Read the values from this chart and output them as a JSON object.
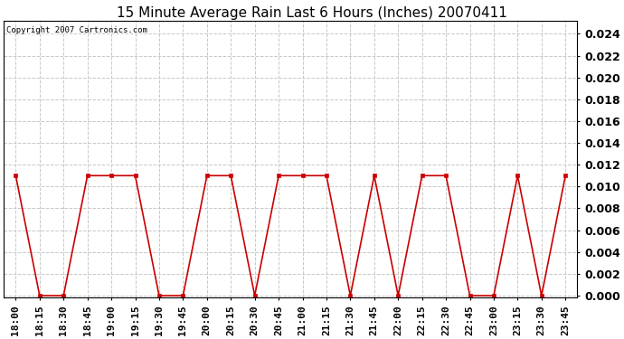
{
  "title": "15 Minute Average Rain Last 6 Hours (Inches) 20070411",
  "copyright_text": "Copyright 2007 Cartronics.com",
  "line_color": "#cc0000",
  "marker_color": "#cc0000",
  "background_color": "#ffffff",
  "grid_color": "#c8c8c8",
  "x_labels": [
    "18:00",
    "18:15",
    "18:30",
    "18:45",
    "19:00",
    "19:15",
    "19:30",
    "19:45",
    "20:00",
    "20:15",
    "20:30",
    "20:45",
    "21:00",
    "21:15",
    "21:30",
    "21:45",
    "22:00",
    "22:15",
    "22:30",
    "22:45",
    "23:00",
    "23:15",
    "23:30",
    "23:45"
  ],
  "y_values": [
    0.011,
    0.0,
    0.0,
    0.011,
    0.011,
    0.011,
    0.0,
    0.0,
    0.011,
    0.011,
    0.0,
    0.011,
    0.011,
    0.011,
    0.0,
    0.011,
    0.0,
    0.011,
    0.011,
    0.0,
    0.0,
    0.011,
    0.0,
    0.011
  ],
  "ylim": [
    -0.0002,
    0.0252
  ],
  "yticks": [
    0.0,
    0.002,
    0.004,
    0.006,
    0.008,
    0.01,
    0.012,
    0.014,
    0.016,
    0.018,
    0.02,
    0.022,
    0.024
  ],
  "title_fontsize": 11,
  "copyright_fontsize": 6.5,
  "tick_fontsize": 8,
  "ytick_fontsize": 9,
  "marker_size": 2.5,
  "line_width": 1.2
}
